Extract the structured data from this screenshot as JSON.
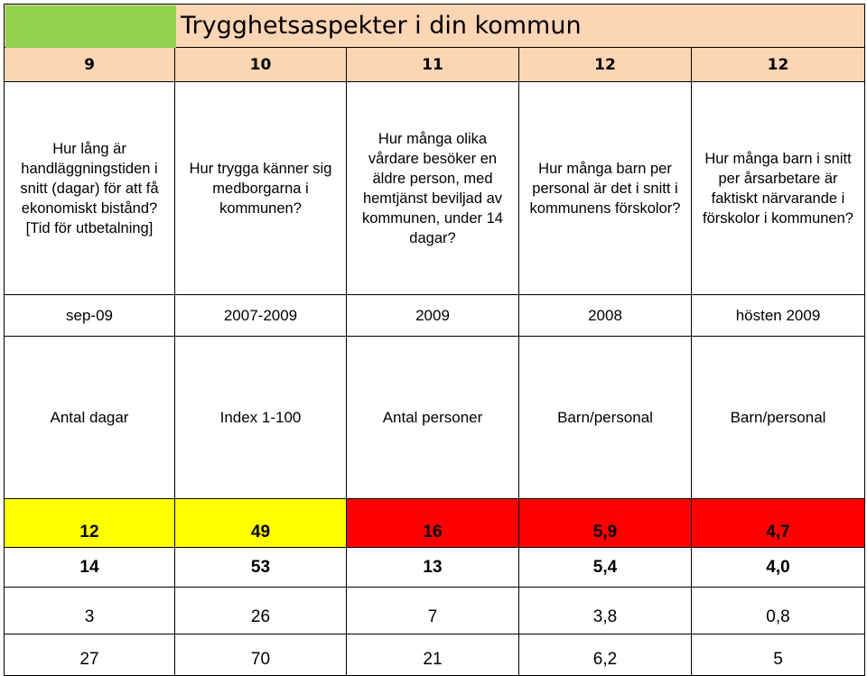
{
  "title": "Trygghetsaspekter i din kommun",
  "numbers": [
    "9",
    "10",
    "11",
    "12",
    "12"
  ],
  "questions": [
    "Hur lång är handläggningstiden i snitt (dagar) för att få ekonomiskt bistånd? [Tid för utbetalning]",
    "Hur trygga känner sig medborgarna i kommunen?",
    "Hur många olika vårdare besöker en äldre person, med hemtjänst beviljad av kommunen, under 14 dagar?",
    "Hur många barn per personal är det i snitt i kommunens förskolor?",
    "Hur många barn i snitt per årsarbetare är faktiskt närvarande i förskolor i kommunen?"
  ],
  "periods": [
    "sep-09",
    "2007-2009",
    "2009",
    "2008",
    "hösten 2009"
  ],
  "units": [
    "Antal dagar",
    "Index 1-100",
    "Antal personer",
    "Barn/personal",
    "Barn/personal"
  ],
  "highlight_row": [
    "12",
    "49",
    "16",
    "5,9",
    "4,7"
  ],
  "highlight_colors": [
    "#ffff00",
    "#ffff00",
    "#ff0000",
    "#ff0000",
    "#ff0000"
  ],
  "bold_row": [
    "14",
    "53",
    "13",
    "5,4",
    "4,0"
  ],
  "row_3": [
    "3",
    "26",
    "7",
    "3,8",
    "0,8"
  ],
  "row_4": [
    "27",
    "70",
    "21",
    "6,2",
    "5"
  ]
}
